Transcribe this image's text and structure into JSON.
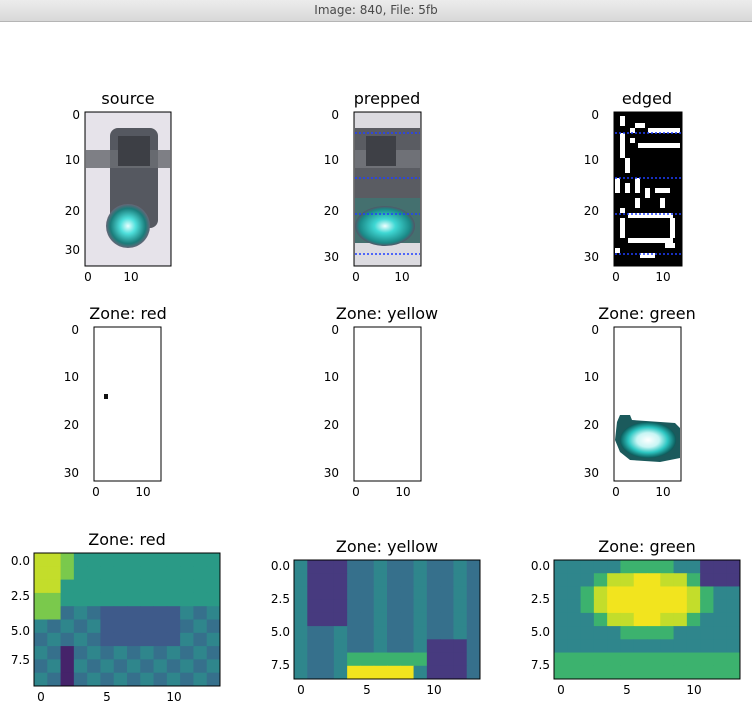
{
  "window": {
    "title": "Image: 840, File: 5fb"
  },
  "panels": {
    "source": {
      "title": "source",
      "yticks": [
        "0",
        "10",
        "20",
        "30"
      ],
      "xticks": [
        "0",
        "10"
      ]
    },
    "prepped": {
      "title": "prepped",
      "yticks": [
        "0",
        "10",
        "20",
        "30"
      ],
      "xticks": [
        "0",
        "10"
      ]
    },
    "edged": {
      "title": "edged",
      "yticks": [
        "0",
        "10",
        "20",
        "30"
      ],
      "xticks": [
        "0",
        "10"
      ]
    },
    "zone_red": {
      "title": "Zone: red",
      "yticks": [
        "0",
        "10",
        "20",
        "30"
      ],
      "xticks": [
        "0",
        "10"
      ]
    },
    "zone_yellow": {
      "title": "Zone: yellow",
      "yticks": [
        "0",
        "10",
        "20",
        "30"
      ],
      "xticks": [
        "0",
        "10"
      ]
    },
    "zone_green": {
      "title": "Zone: green",
      "yticks": [
        "0",
        "10",
        "20",
        "30"
      ],
      "xticks": [
        "0",
        "10"
      ]
    },
    "heat_red": {
      "title": "Zone: red",
      "yticks": [
        "0.0",
        "2.5",
        "5.0",
        "7.5"
      ],
      "xticks": [
        "0",
        "5",
        "10"
      ]
    },
    "heat_yellow": {
      "title": "Zone: yellow",
      "yticks": [
        "0.0",
        "2.5",
        "5.0",
        "7.5"
      ],
      "xticks": [
        "0",
        "5",
        "10"
      ]
    },
    "heat_green": {
      "title": "Zone: green",
      "yticks": [
        "0.0",
        "2.5",
        "5.0",
        "7.5"
      ],
      "xticks": [
        "0",
        "5",
        "10"
      ]
    }
  },
  "colors": {
    "guide_line": "#1f3fff",
    "cyan_light": "#2fd6d0",
    "edge_bg": "#000000"
  }
}
